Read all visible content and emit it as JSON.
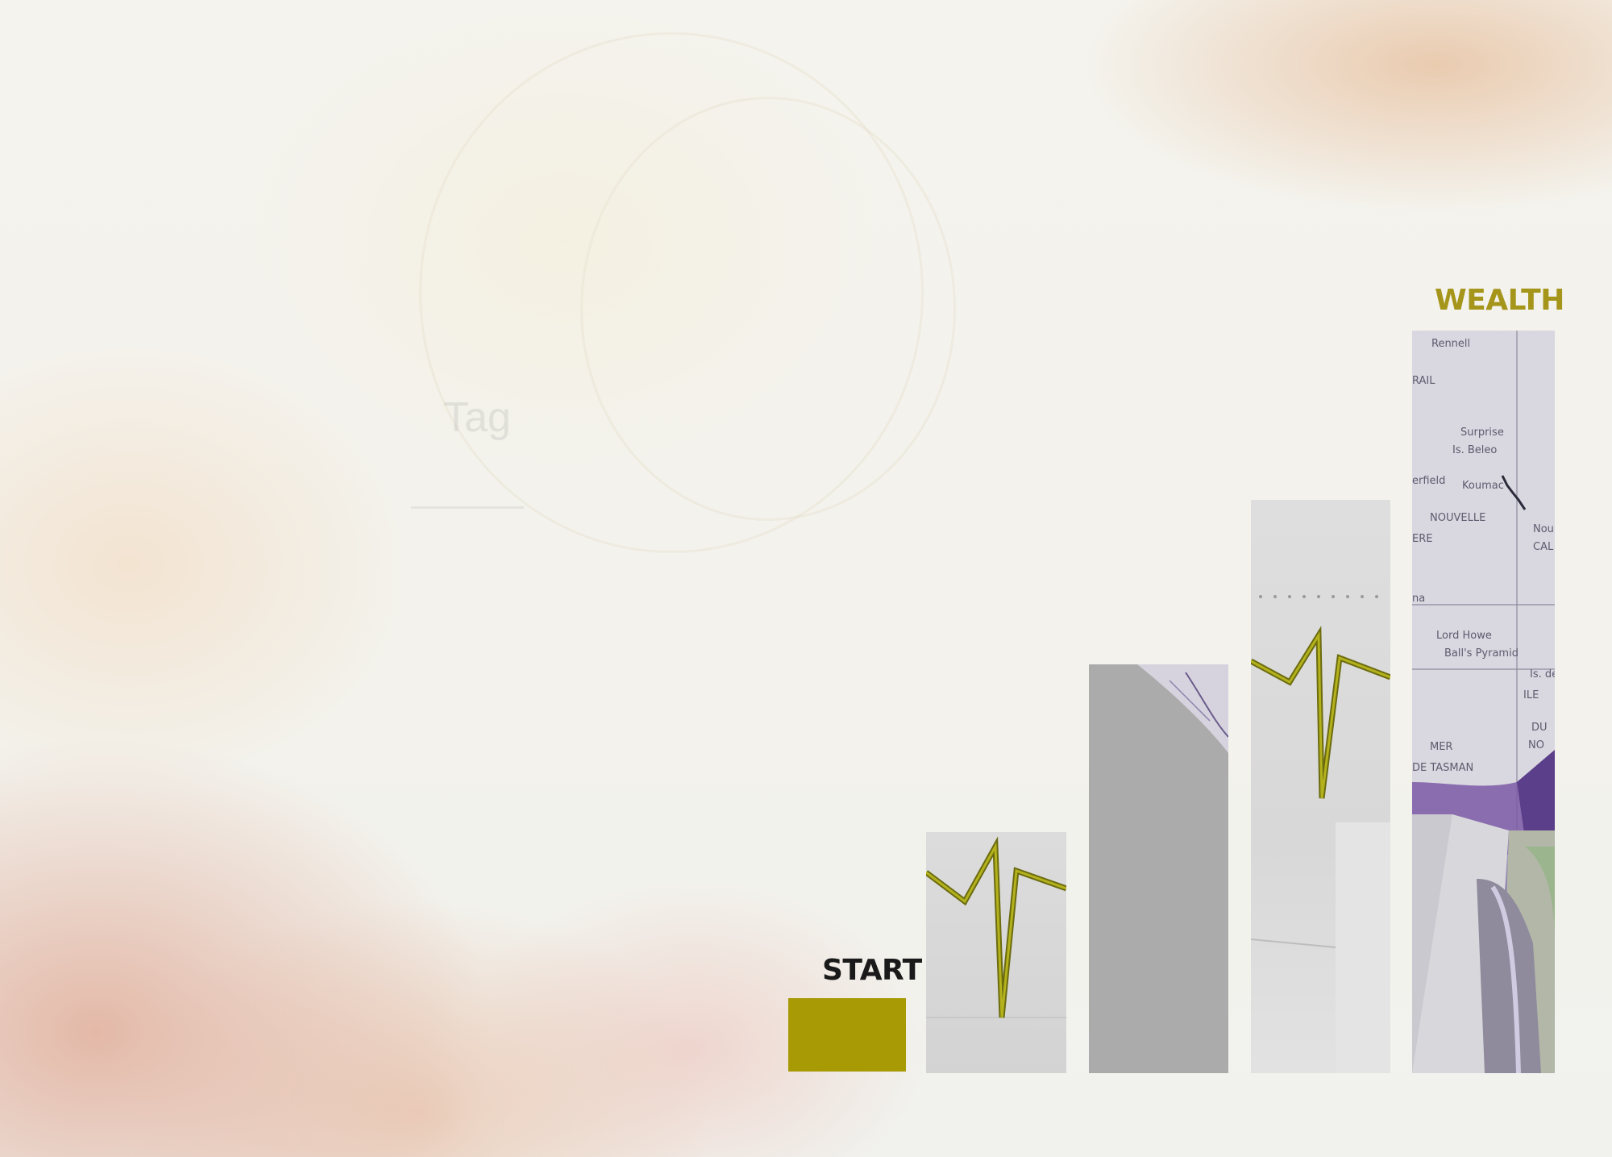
{
  "labels": {
    "start": "START",
    "wealth": "WEALTH"
  },
  "background_text": "Tag",
  "colors": {
    "gold": "#a79a05",
    "gold_text": "#a5951a",
    "dark_text": "#1a1a1a",
    "bar_gray": "#ababab",
    "trend_line": "#8a8a10",
    "globe_purple": "#7b5aa6"
  }
}
